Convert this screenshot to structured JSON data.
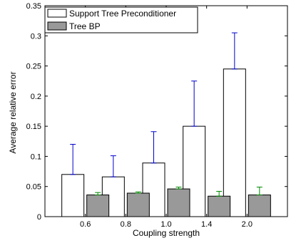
{
  "chart_data": {
    "type": "bar",
    "title": "",
    "xlabel": "Coupling strength",
    "ylabel": "Average relative error",
    "categories": [
      "0.6",
      "0.8",
      "1.0",
      "1.4",
      "2.0"
    ],
    "ylim": [
      0,
      0.35
    ],
    "yticks": [
      "0",
      "0.05",
      "0.1",
      "0.15",
      "0.2",
      "0.25",
      "0.3",
      "0.35"
    ],
    "legend_position": "top-left",
    "grid": false,
    "series": [
      {
        "name": "Support Tree Preconditioner",
        "values": [
          0.07,
          0.066,
          0.089,
          0.15,
          0.245
        ],
        "error_upper": [
          0.12,
          0.101,
          0.141,
          0.225,
          0.305
        ],
        "fill": "#ffffff",
        "error_color": "#0000cc"
      },
      {
        "name": "Tree BP",
        "values": [
          0.036,
          0.039,
          0.046,
          0.034,
          0.036
        ],
        "error_upper": [
          0.04,
          0.041,
          0.049,
          0.042,
          0.049
        ],
        "fill": "#999999",
        "error_color": "#008800"
      }
    ]
  }
}
